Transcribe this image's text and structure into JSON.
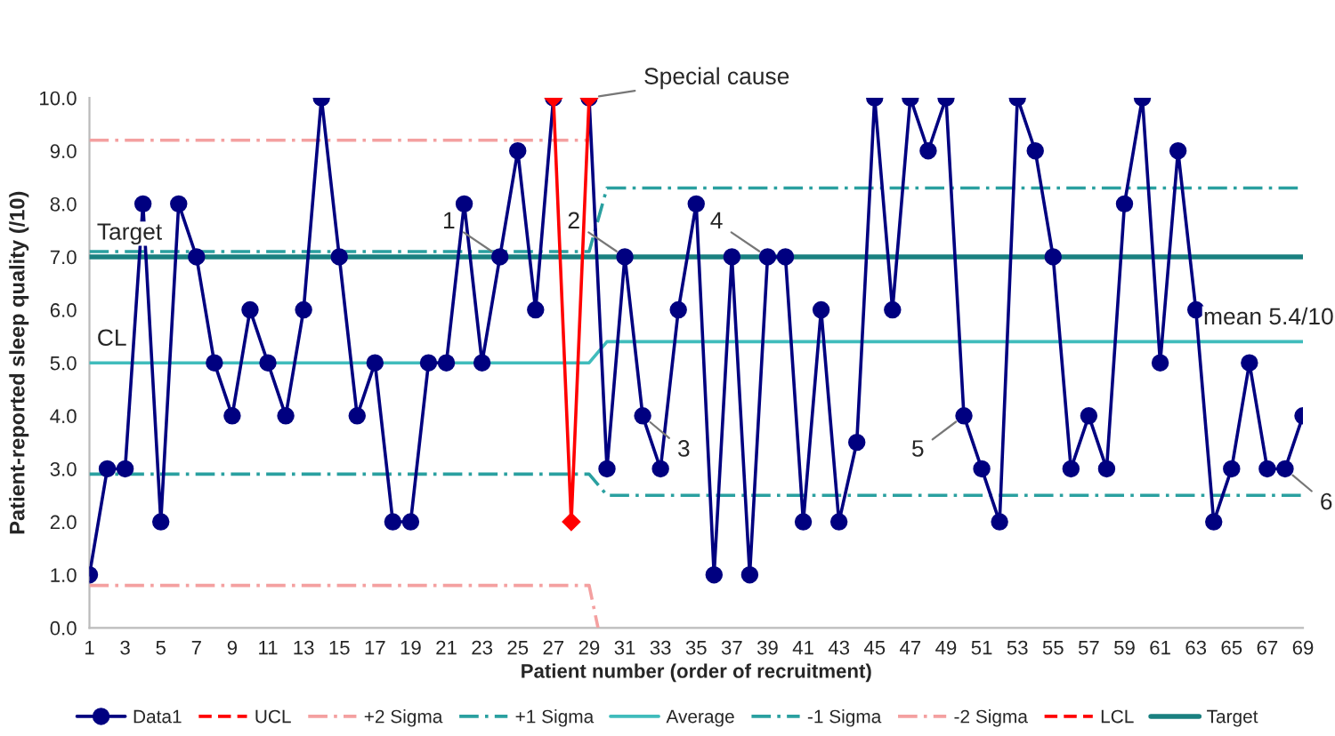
{
  "chart_data": {
    "type": "line",
    "xlabel": "Patient number (order of recruitment)",
    "ylabel": "Patient-reported sleep quality (/10)",
    "xlim": [
      1,
      69
    ],
    "xticks": [
      1,
      3,
      5,
      7,
      9,
      11,
      13,
      15,
      17,
      19,
      21,
      23,
      25,
      27,
      29,
      31,
      33,
      35,
      37,
      39,
      41,
      43,
      45,
      47,
      49,
      51,
      53,
      55,
      57,
      59,
      61,
      63,
      65,
      67,
      69
    ],
    "ylim": [
      0,
      10
    ],
    "yticks": [
      {
        "value": 0,
        "label": "0.0"
      },
      {
        "value": 1,
        "label": "1.0"
      },
      {
        "value": 2,
        "label": "2.0"
      },
      {
        "value": 3,
        "label": "3.0"
      },
      {
        "value": 4,
        "label": "4.0"
      },
      {
        "value": 5,
        "label": "5.0"
      },
      {
        "value": 6,
        "label": "6.0"
      },
      {
        "value": 7,
        "label": "7.0"
      },
      {
        "value": 8,
        "label": "8.0"
      },
      {
        "value": 9,
        "label": "9.0"
      },
      {
        "value": 10,
        "label": "10.0"
      }
    ],
    "grid": false,
    "legend": "bottom",
    "series": [
      {
        "name": "Data1",
        "color": "#000080",
        "marker": "circle",
        "line_style": "solid",
        "x": [
          1,
          2,
          3,
          4,
          5,
          6,
          7,
          8,
          9,
          10,
          11,
          12,
          13,
          14,
          15,
          16,
          17,
          18,
          19,
          20,
          21,
          22,
          23,
          24,
          25,
          26,
          27,
          28,
          29,
          30,
          31,
          32,
          33,
          34,
          35,
          36,
          37,
          38,
          39,
          40,
          41,
          42,
          43,
          44,
          45,
          46,
          47,
          48,
          49,
          50,
          51,
          52,
          53,
          54,
          55,
          56,
          57,
          58,
          59,
          60,
          61,
          62,
          63,
          64,
          65,
          66,
          67,
          68,
          69
        ],
        "values": [
          1,
          3,
          3,
          8,
          2,
          8,
          7,
          5,
          4,
          6,
          5,
          4,
          6,
          10,
          7,
          4,
          5,
          2,
          2,
          5,
          5,
          8,
          5,
          7,
          9,
          6,
          10,
          null,
          10,
          3,
          7,
          4,
          3,
          6,
          8,
          1,
          7,
          1,
          7,
          7,
          2,
          6,
          2,
          3.5,
          10,
          6,
          10,
          9,
          10,
          4,
          3,
          2,
          10,
          9,
          7,
          3,
          4,
          3,
          8,
          10,
          5,
          9,
          6,
          2,
          3,
          5,
          3,
          3,
          4
        ]
      },
      {
        "color": "#ff0000",
        "marker": "diamond",
        "line_style": "solid",
        "x": [
          27,
          28,
          29
        ],
        "values": [
          10,
          2,
          10
        ]
      },
      {
        "name": "UCL",
        "color": "#ff0000",
        "marker": "none",
        "line_style": "dashed"
      },
      {
        "name": "+2 Sigma",
        "color": "#f4a0a0",
        "marker": "none",
        "line_style": "dashdot",
        "x": [
          1,
          29
        ],
        "values": [
          9.2,
          9.2
        ]
      },
      {
        "name": "+1 Sigma",
        "color": "#2aa0a0",
        "marker": "none",
        "line_style": "dashdot",
        "x": [
          1,
          29,
          30,
          69
        ],
        "values": [
          7.1,
          7.1,
          8.3,
          8.3
        ]
      },
      {
        "name": "Average",
        "color": "#40bcbc",
        "marker": "none",
        "line_style": "solid",
        "x": [
          1,
          29,
          30,
          69
        ],
        "values": [
          5.0,
          5.0,
          5.4,
          5.4
        ]
      },
      {
        "name": "-1 Sigma",
        "color": "#2aa0a0",
        "marker": "none",
        "line_style": "dashdot",
        "x": [
          1,
          29,
          30,
          69
        ],
        "values": [
          2.9,
          2.9,
          2.5,
          2.5
        ]
      },
      {
        "name": "-2 Sigma",
        "color": "#f4a0a0",
        "marker": "none",
        "line_style": "dashdot",
        "x": [
          1,
          29,
          29.5
        ],
        "values": [
          0.8,
          0.8,
          0.0
        ]
      },
      {
        "name": "LCL",
        "color": "#ff0000",
        "marker": "none",
        "line_style": "dashed"
      },
      {
        "name": "Target",
        "color": "#1a8080",
        "marker": "none",
        "line_style": "solid",
        "x": [
          1,
          69
        ],
        "values": [
          7.0,
          7.0
        ]
      }
    ],
    "annotations": [
      {
        "text": "Target",
        "x": 1,
        "y": 7.0
      },
      {
        "text": "CL",
        "x": 1,
        "y": 5.0
      },
      {
        "text": "mean 5.4/10",
        "x": 63,
        "y": 5.4
      },
      {
        "text": "Special cause",
        "x": 29,
        "y": 10
      },
      {
        "text": "1",
        "x": 24,
        "y": 7
      },
      {
        "text": "2",
        "x": 31,
        "y": 7
      },
      {
        "text": "3",
        "x": 32,
        "y": 4
      },
      {
        "text": "4",
        "x": 39,
        "y": 7
      },
      {
        "text": "5",
        "x": 50,
        "y": 4
      },
      {
        "text": "6",
        "x": 68,
        "y": 3
      }
    ]
  }
}
